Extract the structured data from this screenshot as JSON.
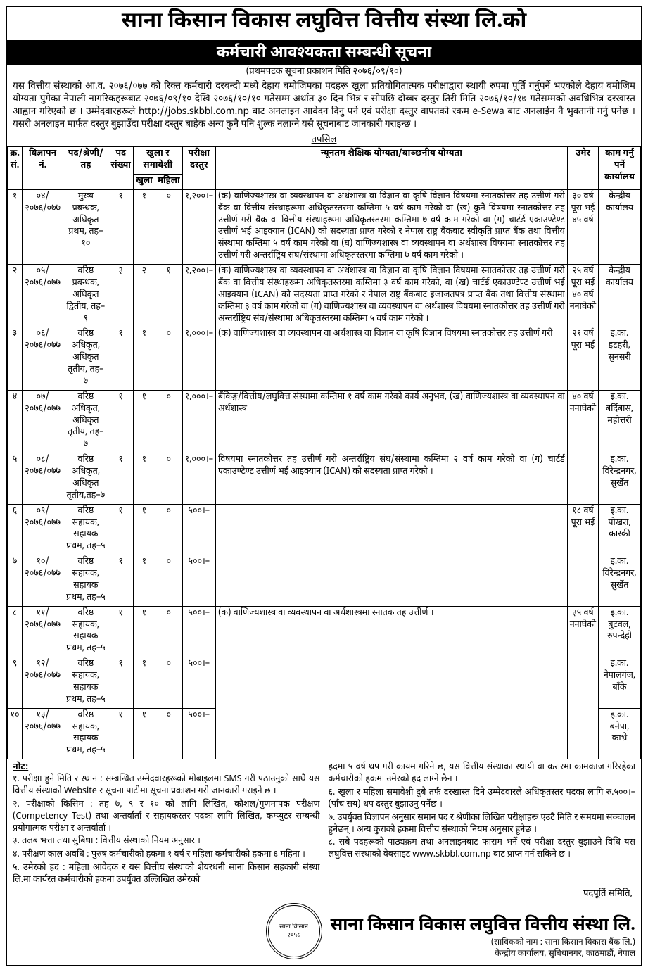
{
  "header": {
    "org_title": "साना किसान विकास लघुवित्त वित्तीय संस्था लि.को",
    "notice_title": "कर्मचारी आवश्यकता सम्बन्धी सूचना",
    "pub_line": "(प्रथमपटक सूचना प्रकाशन मिति २०७६/०९/१०)",
    "intro": "यस वित्तीय संस्थाको आ.व. २०७६/०७७ को रिक्त कर्मचारी दरबन्दी मध्ये देहाय बमोजिमका पदहरू खुला प्रतियोगितात्मक परीक्षाद्वारा स्थायी रुपमा पूर्ति गर्नुपर्ने भएकोले देहाय बमोजिम योग्यता पुगेका नेपाली नागरिकहरूबाट २०७६/०९/१० देखि २०७६/१०/१० गतेसम्म अर्थात ३० दिन भित्र र सोपछि दोब्बर दस्तुर तिरी मिति २०७६/१०/१७ गतेसम्मको अवधिभित्र दरखास्त आह्वान गरिएको छ । उम्मेदवारहरूले http://jobs.skbbl.com.np बाट अनलाइन आवेदन दिनु पर्ने एवं परीक्षा दस्तुर वापतको रकम e-Sewa बाट अनलाईन नै भुक्तानी गर्नु पर्नेछ । यसरी अनलाइन मार्फत दस्तुर बुझाउँदा परीक्षा दस्तुर बाहेक अन्य कुनै पनि शुल्क नलाग्ने यसै सूचनाबाट जानकारी गराइन्छ ।",
    "tapasil": "तपसिल"
  },
  "table": {
    "head": {
      "sn": "क्र.\nसं.",
      "adv": "विज्ञापन नं.",
      "post": "पद/श्रेणी/तह",
      "count": "पद\nसंख्या",
      "open_group": "खुला र\nसमावेशी",
      "open": "खुला",
      "female": "महिला",
      "fee": "परीक्षा\nदस्तुर",
      "qual": "न्यूनतम शैक्षिक योग्यता/बाञ्छनीय योग्यता",
      "age": "उमेर",
      "office": "काम गर्नु पर्ने\nकार्यालय"
    },
    "rows": [
      {
        "sn": "१",
        "adv": "०४/\n२०७६/०७७",
        "post": "मुख्य प्रबन्धक, अधिकृत\nप्रथम, तह–१०",
        "count": "१",
        "open": "१",
        "female": "०",
        "fee": "१,२००।–",
        "qual": "(क) वाणिज्यशास्त्र वा व्यवस्थापन वा अर्थशास्त्र वा विज्ञान वा कृषि विज्ञान विषयमा स्नातकोत्तर तह उत्तीर्ण गरी बैंक वा वित्तीय संस्थाहरूमा अधिकृतस्तरमा कम्तिमा ५ वर्ष काम गरेको वा (ख) कुनै विषयमा स्नातकोत्तर तह उत्तीर्ण गरी बैंक वा वित्तीय संस्थाहरूमा अधिकृतस्तरमा कम्तिमा ७ वर्ष काम गरेको वा (ग) चार्टर्ड एकाउण्टेण्ट उत्तीर्ण भई आइक्यान (ICAN) को सदस्यता प्राप्त गरेको र नेपाल राष्ट्र बैंकबाट स्वीकृति प्राप्त बैंक तथा वित्तीय संस्थामा कम्तिमा ५ वर्ष काम गरेको वा (घ) वाणिज्यशास्त्र वा व्यवस्थापन वा अर्थशास्त्र विषयमा स्नातकोत्तर तह उत्तीर्ण गरी अन्तर्राष्ट्रिय संघ/संस्थामा अधिकृतस्तरमा कम्तिमा ७ वर्ष काम गरेको ।",
        "age": "३० वर्ष\nपूरा भई\n४५ वर्ष",
        "office": "केन्द्रीय कार्यालय"
      },
      {
        "sn": "२",
        "adv": "०५/\n२०७६/०७७",
        "post": "वरिष्ठ प्रबन्धक,\nअधिकृत द्वितीय, तह–९",
        "count": "३",
        "open": "२",
        "female": "१",
        "fee": "१,२००।–",
        "qual": "(क) वाणिज्यशास्त्र वा व्यवस्थापन वा अर्थशास्त्र वा विज्ञान वा कृषि विज्ञान विषयमा स्नातकोत्तर तह उत्तीर्ण गरी बैंक वा वित्तीय संस्थाहरूमा अधिकृतस्तरमा कम्तिमा ३ वर्ष काम गरेको, वा (ख) चार्टर्ड एकाउण्टेण्ट उत्तीर्ण भई आइक्यान (ICAN) को सदस्यता प्राप्त गरेको र नेपाल राष्ट्र बैंकबाट इजाजतपत्र प्राप्त बैंक तथा वित्तीय संस्थामा कम्तिमा ३ वर्ष काम गरेको वा (ग) वाणिज्यशास्त्र वा व्यवस्थापन वा अर्थशास्त्र विषयमा स्नातकोत्तर तह उत्तीर्ण गरी अन्तर्राष्ट्रिय संघ/संस्थामा अधिकृतस्तरमा कम्तिमा ५ वर्ष काम गरेको ।",
        "age": "२५ वर्ष\nपूरा भई\n४० वर्ष\nननाघेको",
        "office": "केन्द्रीय कार्यालय"
      },
      {
        "sn": "३",
        "adv": "०६/\n२०७६/०७७",
        "post": "वरिष्ठ अधिकृत,\nअधिकृत तृतीय, तह–७",
        "count": "१",
        "open": "१",
        "female": "०",
        "fee": "१,०००।–",
        "qual": "(क) वाणिज्यशास्त्र वा व्यवस्थापन वा अर्थशास्त्र वा विज्ञान वा कृषि विज्ञान विषयमा स्नातकोत्तर तह उत्तीर्ण गरी",
        "age": "२१ वर्ष\nपूरा भई",
        "office": "इ.का. इटहरी,\nसुनसरी",
        "qual_rowspan": 3,
        "age_rowspan": 3
      },
      {
        "sn": "४",
        "adv": "०७/\n२०७६/०७७",
        "post": "वरिष्ठ अधिकृत,\nअधिकृत तृतीय, तह–७",
        "count": "१",
        "open": "१",
        "female": "०",
        "fee": "१,०००।–",
        "qual": "बैंकिङ्ग/वित्तीय/लघुवित्त संस्थामा कम्तिमा १ वर्ष काम गरेको कार्य अनुभव, (ख) वाणिज्यशास्त्र वा व्यवस्थापन वा अर्थशास्त्र",
        "age": "४० वर्ष\nननाघेको",
        "office": "इ.का. बर्दिबास,\nमहोत्तरी"
      },
      {
        "sn": "५",
        "adv": "०८/\n२०७६/०७७",
        "post": "वरिष्ठ अधिकृत,\nअधिकृत तृतीय,तह–७",
        "count": "१",
        "open": "१",
        "female": "०",
        "fee": "१,०००।–",
        "qual": "विषयमा स्नातकोत्तर तह उत्तीर्ण गरी अन्तर्राष्ट्रिय संघ/संस्थामा कम्तिमा २ वर्ष काम गरेको  वा (ग) चार्टर्ड एकाउण्टेण्ट उत्तीर्ण भई आइक्यान (ICAN) को सदस्यता प्राप्त गरेको ।",
        "age": "",
        "office": "इ.का.\nविरेन्द्रनगर,\nसुर्खेत"
      },
      {
        "sn": "६",
        "adv": "०९/\n२०७६/०७७",
        "post": "वरिष्ठ सहायक, सहायक\nप्रथम, तह–५",
        "count": "१",
        "open": "१",
        "female": "०",
        "fee": "५००।–",
        "qual": "",
        "age": "१८ वर्ष\nपूरा भई",
        "office": "इ.का. पोखरा,\nकास्की",
        "qual_rowspan": 2,
        "age_rowspan": 5
      },
      {
        "sn": "७",
        "adv": "१०/\n२०७६/०७७",
        "post": "वरिष्ठ सहायक, सहायक\nप्रथम, तह–५",
        "count": "१",
        "open": "१",
        "female": "०",
        "fee": "५००।–",
        "qual": "",
        "age": "३५ वर्ष\nननाघेको",
        "office": "इ.का. विरेन्द्रनगर,\nसुर्खेत"
      },
      {
        "sn": "८",
        "adv": "११/\n२०७६/०७७",
        "post": "वरिष्ठ सहायक, सहायक\nप्रथम, तह–५",
        "count": "१",
        "open": "१",
        "female": "०",
        "fee": "५००।–",
        "qual": "(क) वाणिज्यशास्त्र वा व्यवस्थापन वा अर्थशास्त्रमा स्नातक तह उत्तीर्ण ।",
        "age": "",
        "office": "इ.का. बुटवल,\nरुपन्देही",
        "qual_rowspan": 3
      },
      {
        "sn": "९",
        "adv": "१२/\n२०७६/०७७",
        "post": "वरिष्ठ सहायक, सहायक\nप्रथम, तह–५",
        "count": "१",
        "open": "१",
        "female": "०",
        "fee": "५००।–",
        "qual": "",
        "age": "",
        "office": "इ.का. नेपालगंज,\nबाँके"
      },
      {
        "sn": "१०",
        "adv": "१३/\n२०७६/०७७",
        "post": "वरिष्ठ सहायक, सहायक\nप्रथम, तह–५",
        "count": "१",
        "open": "१",
        "female": "०",
        "fee": "५००।–",
        "qual": "",
        "age": "",
        "office": "इ.का. बनेपा,\nकाभ्रे"
      }
    ]
  },
  "notes": {
    "heading": "नोट:",
    "left": [
      "१.  परीक्षा हुने मिति र स्थान : सम्बन्धित उम्मेदवारहरूको मोबाइलमा SMS गरी पठाउनुको साथै यस वित्तीय संस्थाको Website र सूचना पाटीमा सूचना प्रकाशन गरी जानकारी गराइने छ ।",
      "२.  परीक्षाको किसिम : तह ७, ९ र १० को लागि लिखित, कौशल/गुणमापक परीक्षण (Competency Test) तथा अन्तर्वार्ता र सहायकस्तर पदका लागि लिखित, कम्प्युटर सम्बन्धी प्रयोगात्मक परीक्षा र अन्तर्वार्ता ।",
      "३.  तलब भत्ता तथा सुबिधा : वित्तीय संस्थाको नियम अनुसार ।",
      "४.  परीक्षण काल अवधि : पुरुष कर्मचारीको हकमा १ वर्ष र महिला कर्मचारीको हकमा ६ महिना ।",
      "५.  उमेरको हद : महिला आवेदक र यस वित्तीय संस्थाको शेयरधनी साना किसान सहकारी संस्था लि.मा कार्यरत कर्मचारीको हकमा उपर्युक्त उल्लिखित उमेरको"
    ],
    "right": [
      "हदमा ५ वर्ष थप गरी कायम गरिने छ, यस वित्तीय संस्थाका स्थायी वा करारमा कामकाज गरिरहेका कर्मचारीको हकमा उमेरको हद लाग्ने छैन ।",
      "६.  खुला र महिला समावेशी दुबै तर्फ दरखास्त दिने उम्मेदवारले अधिकृतस्तर पदका लागि रु.५००।– (पाँच सय) थप दस्तुर बुझाउनु पर्नेछ ।",
      "७.  उपर्युक्त विज्ञापन अनुसार समान पद र श्रेणीका लिखित परीक्षाहरू एउटै मिति र समयमा सञ्चालन हुनेछन् । अन्य कुराको हकमा वित्तीय संस्थाको नियम अनुसार हुनेछ ।",
      "८.  सबै पदहरूको पाठ्यक्रम तथा अनलाइनबाट फाराम भर्ने एवं परीक्षा दस्तुर बुझाउने विधि यस लघुवित्त संस्थाको वेबसाइट www.skbbl.com.np बाट प्राप्त गर्न सकिने छ ।"
    ]
  },
  "footer": {
    "committee": "पदपूर्ति समिति,",
    "org": "साना किसान विकास लघुवित्त वित्तीय संस्था लि.",
    "former": "(साविकको नाम : साना किसान विकास बैंक लि.)",
    "address": "केन्द्रीय कार्यालय, सुबिधानगर, काठमाडौं, नेपाल",
    "logo": "साना किसान\n२०५८"
  }
}
